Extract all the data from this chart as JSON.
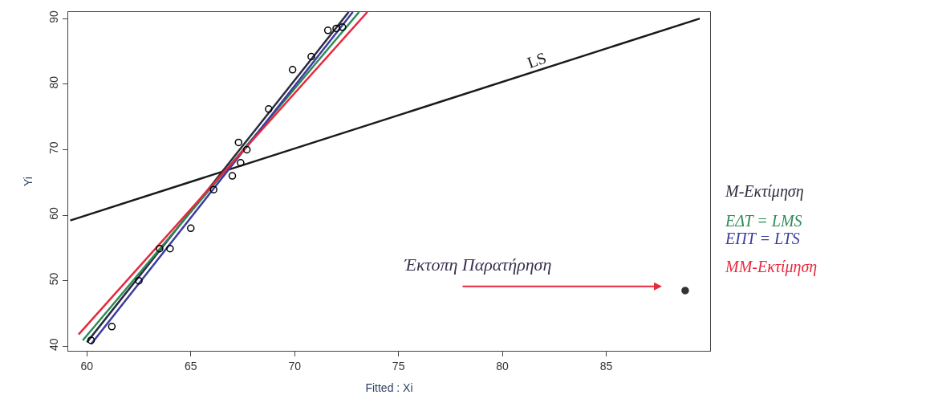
{
  "chart_data": {
    "type": "scatter",
    "xlabel": "Fitted : Xi",
    "ylabel": "Yi",
    "xlim": [
      59.1,
      90
    ],
    "ylim": [
      39.3,
      91
    ],
    "xticks": [
      60,
      65,
      70,
      75,
      80,
      85
    ],
    "yticks": [
      40,
      50,
      60,
      70,
      80,
      90
    ],
    "series": [
      {
        "color": "#000000",
        "marker": "circle",
        "x": [
          60.2,
          61.2,
          62.5,
          63.5,
          64.0,
          65.0,
          66.1,
          67.0,
          67.4,
          67.3,
          67.7,
          68.75,
          69.9,
          70.8,
          71.6,
          72.0,
          72.3
        ],
        "values": [
          40.9,
          43.0,
          50.0,
          54.9,
          54.9,
          58.0,
          63.9,
          66.0,
          68.0,
          71.1,
          70.0,
          76.2,
          82.2,
          84.2,
          88.2,
          88.5,
          88.7
        ]
      },
      {
        "color": "#333333",
        "x": [
          88.8
        ],
        "values": [
          48.5
        ]
      },
      {
        "type": "line",
        "name": "LS",
        "color": "#1a1a1a",
        "x": [
          59.2,
          89.5
        ],
        "values": [
          59.2,
          90
        ]
      },
      {
        "type": "line",
        "name": "Μ-Εκτίμηση",
        "color": "#2b2b40",
        "x": [
          60.0,
          72.6
        ],
        "values": [
          40.6,
          91
        ]
      },
      {
        "type": "line",
        "name": "ΕΔΤ = LMS",
        "color": "#2e8b57",
        "x": [
          59.8,
          73.1
        ],
        "values": [
          40.9,
          91
        ]
      },
      {
        "type": "line",
        "name": "ΕΠΤ = LTS",
        "color": "#3b3ba0",
        "x": [
          60.2,
          72.8
        ],
        "values": [
          40.3,
          91
        ]
      },
      {
        "type": "line",
        "name": "ΜΜ-Εκτίμηση",
        "color": "#e8283c",
        "x": [
          59.6,
          73.5
        ],
        "values": [
          41.8,
          91
        ]
      }
    ],
    "annotations": [
      "Έκτοπη Παρατήρηση"
    ]
  }
}
